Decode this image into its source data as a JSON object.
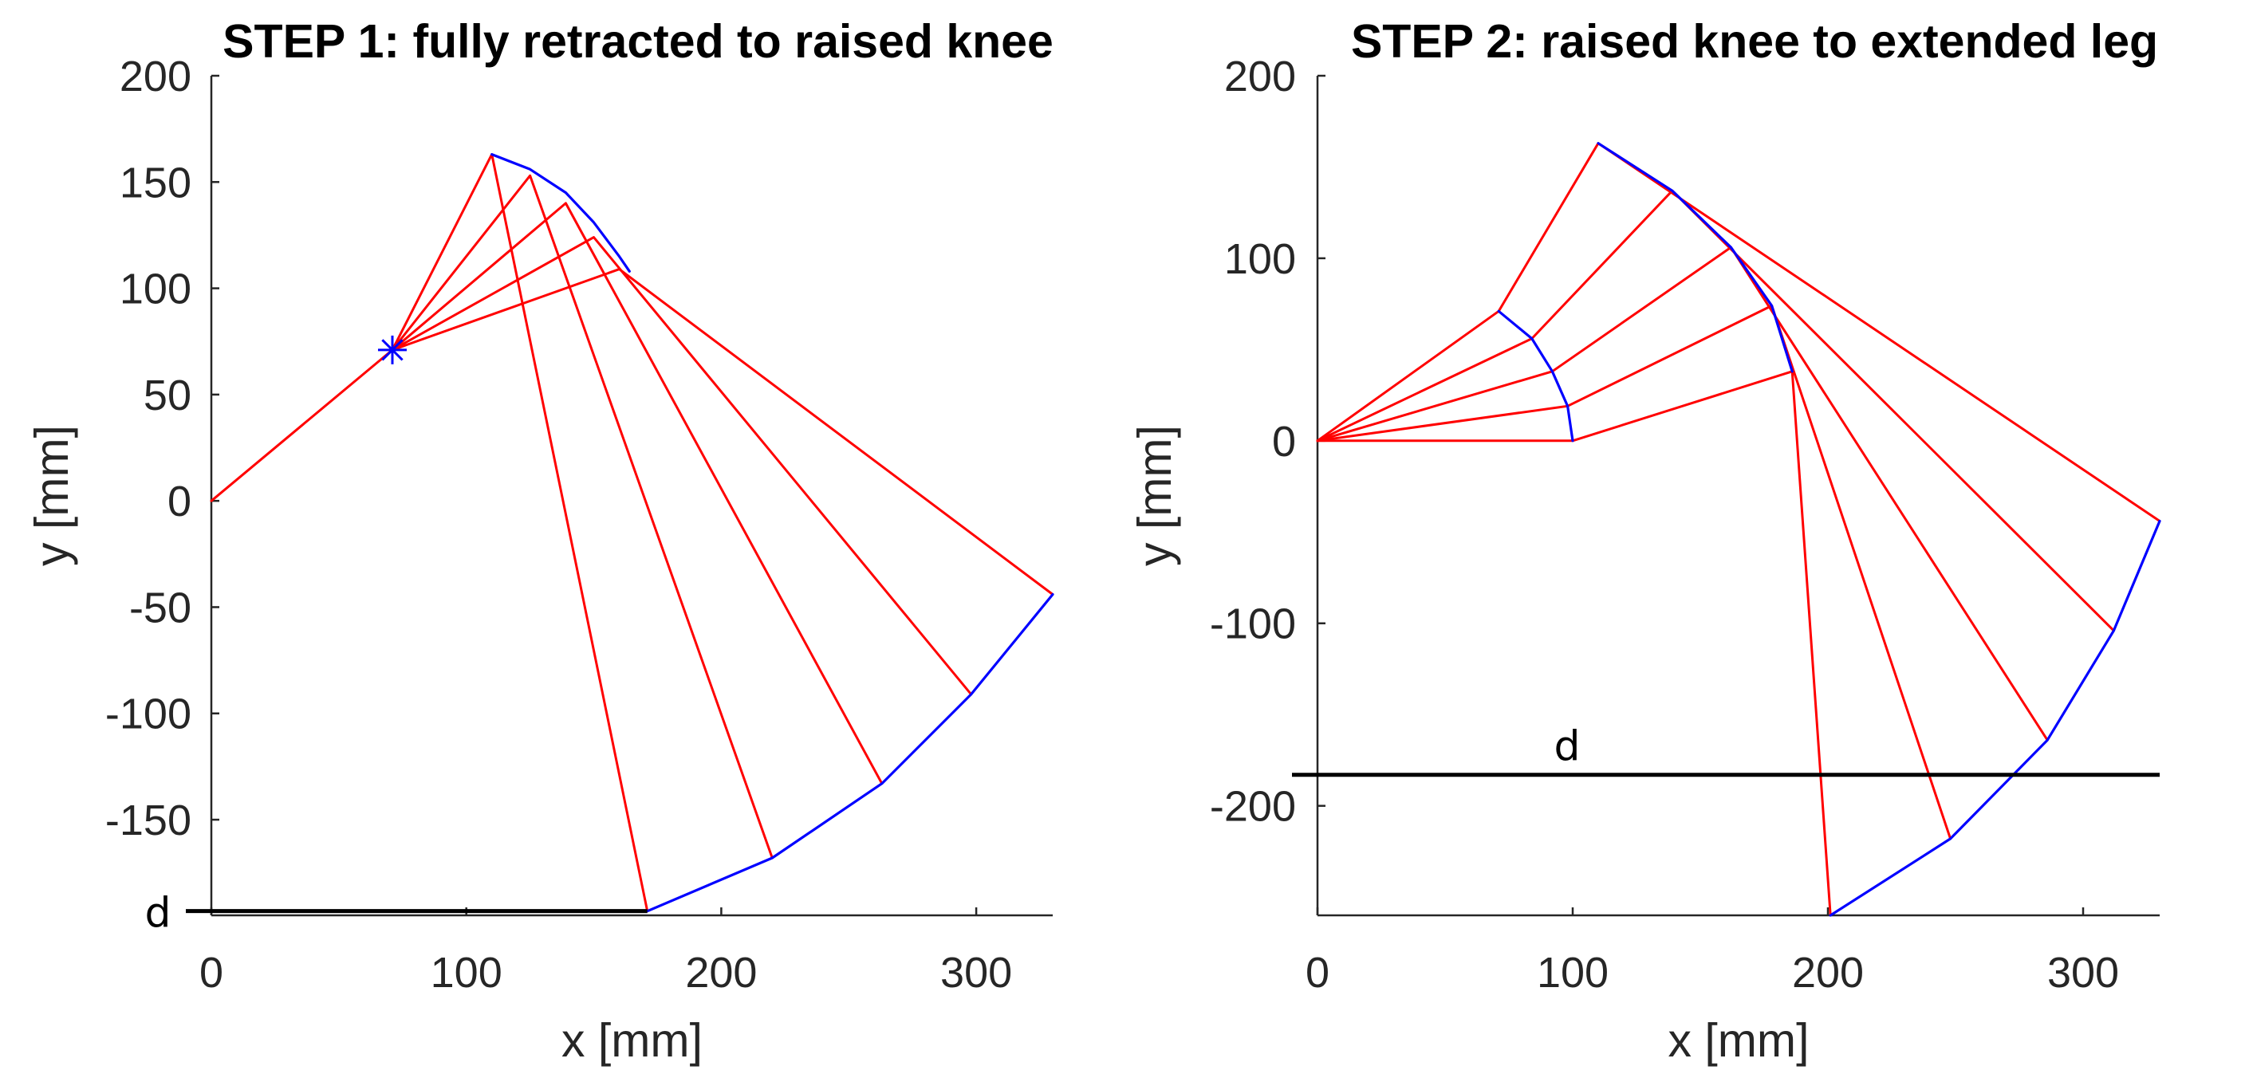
{
  "chart_data": [
    {
      "type": "line",
      "title": "STEP 1: fully retracted to raised knee",
      "xlabel": "x [mm]",
      "ylabel": "y [mm]",
      "xlim": [
        0,
        330
      ],
      "ylim": [
        -195,
        200
      ],
      "xticks": [
        "0",
        "100",
        "200",
        "300"
      ],
      "yticks": [
        "-150",
        "-100",
        "-50",
        "0",
        "50",
        "100",
        "150",
        "200"
      ],
      "grid": false,
      "hip": [
        0,
        0
      ],
      "knee": [
        71,
        71
      ],
      "series": [
        {
          "color": "#ff0000",
          "lines": [
            [
              [
                0,
                0
              ],
              [
                71,
                71
              ]
            ],
            [
              [
                71,
                71
              ],
              [
                110,
                163
              ],
              [
                171,
                -193
              ]
            ],
            [
              [
                71,
                71
              ],
              [
                125,
                153
              ],
              [
                220,
                -168
              ]
            ],
            [
              [
                71,
                71
              ],
              [
                139,
                140
              ],
              [
                263,
                -133
              ]
            ],
            [
              [
                71,
                71
              ],
              [
                150,
                124
              ],
              [
                298,
                -91
              ]
            ],
            [
              [
                71,
                71
              ],
              [
                160,
                109
              ],
              [
                330,
                -44
              ]
            ]
          ]
        },
        {
          "color": "#0000ff",
          "lines": [
            [
              [
                110,
                163
              ],
              [
                125,
                156
              ],
              [
                139,
                145
              ],
              [
                150,
                131
              ],
              [
                160,
                115
              ],
              [
                164,
                108
              ]
            ],
            [
              [
                171,
                -193
              ],
              [
                220,
                -168
              ],
              [
                263,
                -133
              ],
              [
                298,
                -91
              ],
              [
                330,
                -44
              ]
            ]
          ]
        }
      ],
      "marker": {
        "x": 71,
        "y": 71,
        "symbol": "*",
        "color": "#0000ff"
      },
      "ground_line": {
        "y": -193,
        "x_from": -10,
        "x_to": 171,
        "label": "d"
      }
    },
    {
      "type": "line",
      "title": "STEP 2: raised knee to extended leg",
      "xlabel": "x [mm]",
      "ylabel": "y [mm]",
      "xlim": [
        0,
        330
      ],
      "ylim": [
        -260,
        200
      ],
      "xticks": [
        "0",
        "100",
        "200",
        "300"
      ],
      "yticks": [
        "-200",
        "-100",
        "0",
        "100",
        "200"
      ],
      "grid": false,
      "hip": [
        0,
        0
      ],
      "series": [
        {
          "color": "#ff0000",
          "lines": [
            [
              [
                0,
                0
              ],
              [
                71,
                71
              ],
              [
                110,
                163
              ],
              [
                330,
                -44
              ]
            ],
            [
              [
                0,
                0
              ],
              [
                84,
                56
              ],
              [
                139,
                137
              ],
              [
                312,
                -104
              ]
            ],
            [
              [
                0,
                0
              ],
              [
                92,
                38
              ],
              [
                162,
                106
              ],
              [
                286,
                -164
              ]
            ],
            [
              [
                0,
                0
              ],
              [
                98,
                19
              ],
              [
                178,
                74
              ],
              [
                248,
                -218
              ]
            ],
            [
              [
                0,
                0
              ],
              [
                100,
                0
              ],
              [
                186,
                38
              ],
              [
                201,
                -260
              ]
            ]
          ]
        },
        {
          "color": "#0000ff",
          "lines": [
            [
              [
                71,
                71
              ],
              [
                84,
                56
              ],
              [
                92,
                38
              ],
              [
                98,
                19
              ],
              [
                100,
                0
              ]
            ],
            [
              [
                110,
                163
              ],
              [
                139,
                137
              ],
              [
                162,
                106
              ],
              [
                178,
                74
              ],
              [
                186,
                38
              ]
            ],
            [
              [
                201,
                -260
              ],
              [
                248,
                -218
              ],
              [
                286,
                -164
              ],
              [
                312,
                -104
              ],
              [
                330,
                -44
              ]
            ]
          ]
        }
      ],
      "ground_line": {
        "y": -183,
        "x_from": -10,
        "x_to": 330,
        "label": "d"
      }
    }
  ]
}
